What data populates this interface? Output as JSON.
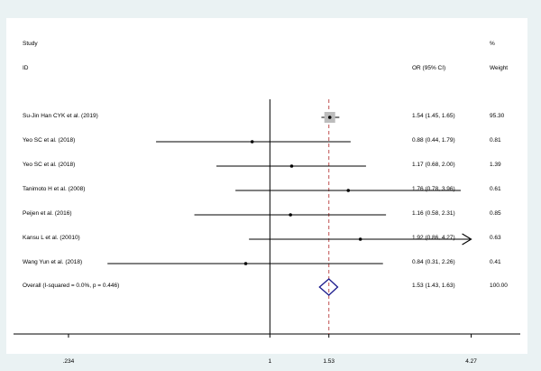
{
  "header": {
    "col1_line1": "Study",
    "col1_line2": "ID",
    "col2": "OR (95% CI)",
    "col3_line1": "%",
    "col3_line2": "Weight"
  },
  "chart_data": {
    "type": "forest",
    "x_scale": "log",
    "xlim": [
      0.168,
      5.7
    ],
    "ticks": [
      {
        "value": 0.234,
        "label": ".234"
      },
      {
        "value": 1,
        "label": "1"
      },
      {
        "value": 1.53,
        "label": "1.53"
      },
      {
        "value": 4.27,
        "label": "4.27"
      }
    ],
    "null_line": 1,
    "overall_line": 1.53,
    "studies": [
      {
        "label": "Su-Jin Han CYK et al. (2019)",
        "or": 1.54,
        "lo": 1.45,
        "hi": 1.65,
        "ci_text": "1.54 (1.45, 1.65)",
        "weight": "95.30"
      },
      {
        "label": "Yeo SC et al. (2018)",
        "or": 0.88,
        "lo": 0.44,
        "hi": 1.79,
        "ci_text": "0.88 (0.44, 1.79)",
        "weight": "0.81"
      },
      {
        "label": "Yeo SC et al. (2018)",
        "or": 1.17,
        "lo": 0.68,
        "hi": 2.0,
        "ci_text": "1.17 (0.68, 2.00)",
        "weight": "1.39"
      },
      {
        "label": "Tanimoto H et al. (2008)",
        "or": 1.76,
        "lo": 0.78,
        "hi": 3.96,
        "ci_text": "1.76 (0.78, 3.96)",
        "weight": "0.61"
      },
      {
        "label": "Peijen et al. (2016)",
        "or": 1.16,
        "lo": 0.58,
        "hi": 2.31,
        "ci_text": "1.16 (0.58, 2.31)",
        "weight": "0.85"
      },
      {
        "label": "Kansu L et al. (20010)",
        "or": 1.92,
        "lo": 0.86,
        "hi": 4.27,
        "ci_text": "1.92 (0.86, 4.27)",
        "weight": "0.63",
        "arrow_right": true
      },
      {
        "label": "Wang Yun et al. (2018)",
        "or": 0.84,
        "lo": 0.31,
        "hi": 2.26,
        "ci_text": "0.84 (0.31, 2.26)",
        "weight": "0.41"
      }
    ],
    "overall": {
      "label": "Overall  (I-squared = 0.0%, p = 0.446)",
      "or": 1.53,
      "lo": 1.43,
      "hi": 1.63,
      "ci_text": "1.53 (1.43, 1.63)",
      "weight": "100.00"
    },
    "colors": {
      "ci_line": "#000000",
      "weight_box": "#bcbcbc",
      "overall_diamond": "#1a1a8c",
      "overall_line": "#c05050"
    }
  }
}
